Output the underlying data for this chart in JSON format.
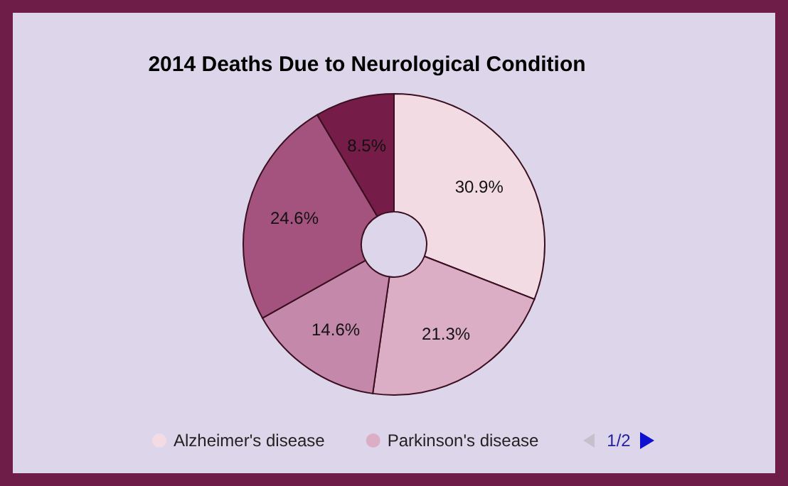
{
  "chart_data": {
    "type": "donut",
    "title": "2014 Deaths Due to Neurological Condition",
    "categories": [
      "Alzheimer's disease",
      "Parkinson's disease",
      null,
      null,
      null
    ],
    "values": [
      30.9,
      21.3,
      14.6,
      24.6,
      8.5
    ],
    "value_labels": [
      "30.9%",
      "21.3%",
      "14.6%",
      "24.6%",
      "8.5%"
    ],
    "colors": [
      "#f2dbe3",
      "#dcaec6",
      "#c488ab",
      "#a4537f",
      "#761c48"
    ],
    "legend": "bottom",
    "annotations": [
      "1/2"
    ]
  }
}
